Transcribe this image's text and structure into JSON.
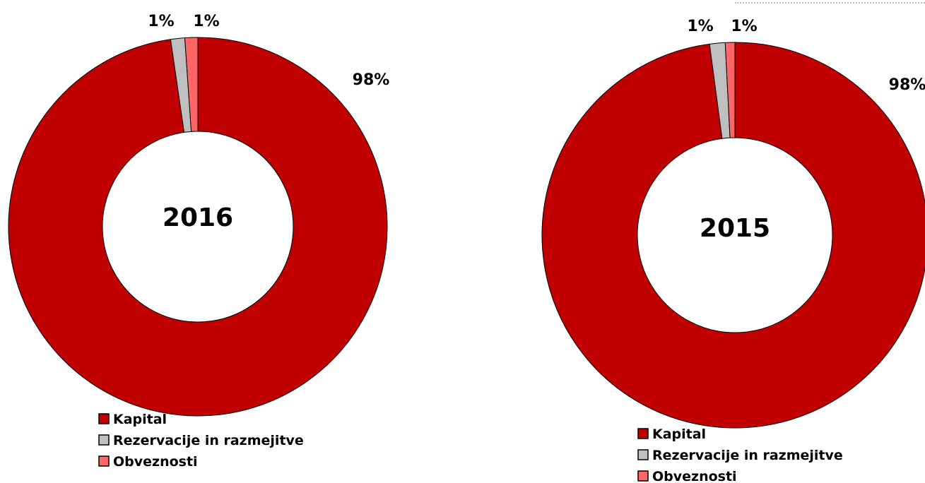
{
  "colors": {
    "kapital": "#c00000",
    "rezervacije": "#bfbfbf",
    "obveznosti": "#ff6666",
    "outline": "#000000"
  },
  "chart_data": [
    {
      "type": "pie",
      "title": "2016",
      "categories": [
        "Kapital",
        "Rezervacije in razmejitve",
        "Obveznosti"
      ],
      "values": [
        97.7,
        1.2,
        1.1
      ],
      "data_labels": [
        "98%",
        "1%",
        "1%"
      ],
      "legend": [
        "Kapital",
        "Rezervacije in razmejitve",
        "Obveznosti"
      ],
      "legend_placement": "bottom"
    },
    {
      "type": "pie",
      "title": "2015",
      "categories": [
        "Kapital",
        "Rezervacije in razmejitve",
        "Obveznosti"
      ],
      "values": [
        97.9,
        1.3,
        0.8
      ],
      "data_labels": [
        "98%",
        "1%",
        "1%"
      ],
      "legend": [
        "Kapital",
        "Rezervacije in razmejitve",
        "Obveznosti"
      ],
      "legend_placement": "bottom"
    }
  ]
}
